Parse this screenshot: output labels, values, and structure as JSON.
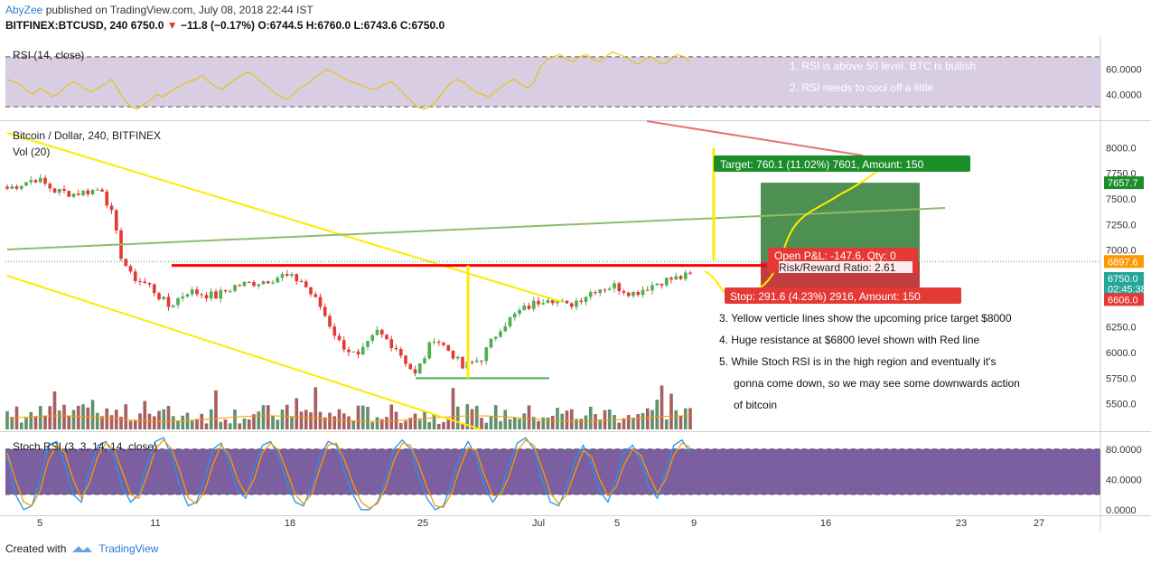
{
  "header": {
    "author": "AbyZee",
    "published_text": "published on TradingView.com, July 08, 2018 22:44 IST",
    "symbol_line_prefix": "BITFINEX:BTCUSD, 240",
    "price": "6750.0",
    "change": "−11.8 (−0.17%)",
    "ohlc": "O:6744.5 H:6760.0 L:6743.6 C:6750.0"
  },
  "footer": {
    "created_with": "Created with",
    "brand": "TradingView"
  },
  "colors": {
    "rsi_band": "#d9cde4",
    "stoch_band": "#7c5fa0",
    "yellow": "#ffea00",
    "red_line": "#ff0000",
    "green_line": "#8fbc6a",
    "target_zone": "#2e7d32",
    "stop_zone": "#b71c1c",
    "up_candle": "#4caf50",
    "down_candle": "#e53935",
    "k_line": "#2196f3",
    "d_line": "#ff9800"
  },
  "chart_data": [
    {
      "type": "line",
      "panel": "rsi",
      "title": "RSI (14, close)",
      "ylim": [
        20,
        80
      ],
      "y_ticks": [
        "60.0000",
        "40.0000"
      ],
      "band": [
        30,
        70
      ],
      "notes": [
        "1. RSI is above 50 level. BTC is bullish",
        "2. RSI needs to cool off a little"
      ],
      "series": [
        {
          "values": [
            52,
            50,
            48,
            43,
            40,
            45,
            42,
            38,
            41,
            46,
            50,
            48,
            44,
            42,
            45,
            48,
            52,
            44,
            36,
            30,
            28,
            32,
            35,
            40,
            38,
            42,
            45,
            48,
            50,
            52,
            55,
            50,
            46,
            44,
            48,
            52,
            55,
            58,
            55,
            50,
            46,
            42,
            38,
            36,
            40,
            45,
            48,
            52,
            56,
            60,
            58,
            55,
            52,
            50,
            48,
            46,
            44,
            45,
            48,
            50,
            46,
            40,
            35,
            30,
            28,
            30,
            35,
            42,
            48,
            52,
            50,
            46,
            42,
            40,
            38,
            42,
            46,
            50,
            52,
            48,
            45,
            50,
            62,
            68,
            70,
            72,
            68,
            66,
            70,
            72,
            68,
            66,
            70,
            74,
            72,
            70,
            66,
            64,
            68,
            70,
            66,
            64,
            68,
            72,
            70,
            66
          ]
        }
      ]
    },
    {
      "type": "candlestick",
      "panel": "price",
      "title": "Bitcoin / Dollar, 240, BITFINEX",
      "volume_label": "Vol (20)",
      "ylim": [
        5250,
        8250
      ],
      "y_ticks": [
        "8000.0",
        "7750.0",
        "7500.0",
        "7250.0",
        "7000.0",
        "6750.0",
        "6500.0",
        "6250.0",
        "6000.0",
        "5750.0",
        "5500.0"
      ],
      "price_badges": [
        "7657.7",
        "6897.6",
        "6750.0",
        "02:45:38",
        "6606.0"
      ],
      "key_points": [
        [
          0,
          7600
        ],
        [
          6,
          7700
        ],
        [
          10,
          7580
        ],
        [
          14,
          7550
        ],
        [
          20,
          7600
        ],
        [
          22,
          7350
        ],
        [
          24,
          6950
        ],
        [
          26,
          6750
        ],
        [
          30,
          6650
        ],
        [
          34,
          6450
        ],
        [
          38,
          6600
        ],
        [
          44,
          6550
        ],
        [
          48,
          6650
        ],
        [
          54,
          6700
        ],
        [
          58,
          6750
        ],
        [
          62,
          6700
        ],
        [
          66,
          6450
        ],
        [
          70,
          6100
        ],
        [
          74,
          5950
        ],
        [
          78,
          6200
        ],
        [
          82,
          6050
        ],
        [
          86,
          5780
        ],
        [
          90,
          6150
        ],
        [
          94,
          5980
        ],
        [
          96,
          5850
        ],
        [
          100,
          5950
        ],
        [
          104,
          6250
        ],
        [
          108,
          6400
        ],
        [
          114,
          6550
        ],
        [
          118,
          6450
        ],
        [
          124,
          6620
        ],
        [
          128,
          6650
        ],
        [
          132,
          6580
        ],
        [
          138,
          6700
        ],
        [
          144,
          6750
        ]
      ],
      "annotations": {
        "target_label": "Target: 760.1 (11.02%) 7601, Amount: 150",
        "open_pl": "Open P&L: -147.6, Qty: 0",
        "risk_reward": "Risk/Reward Ratio: 2.61",
        "stop_label": "Stop: 291.6 (4.23%) 2916, Amount: 150",
        "notes": [
          "3. Yellow verticle lines show the upcoming price target $8000",
          "4. Huge resistance at $6800 level shown with Red line",
          "5. While Stoch RSI is in the high region and eventually it's",
          "gonna come down, so we may see some downwards action",
          "of bitcoin"
        ]
      },
      "levels": {
        "resistance": 6850,
        "target": 7657.7,
        "stop": 6606.0,
        "entry": 6897.6,
        "support": 5750
      }
    },
    {
      "type": "line",
      "panel": "stoch_rsi",
      "title": "Stoch RSI (3, 3, 14, 14, close)",
      "ylim": [
        -5,
        100
      ],
      "y_ticks": [
        "80.0000",
        "40.0000",
        "0.0000"
      ],
      "band": [
        20,
        80
      ],
      "series": [
        {
          "name": "K",
          "values": [
            70,
            20,
            0,
            5,
            40,
            85,
            90,
            60,
            20,
            10,
            50,
            85,
            90,
            70,
            30,
            10,
            20,
            60,
            90,
            95,
            70,
            30,
            5,
            10,
            40,
            80,
            88,
            60,
            25,
            15,
            55,
            85,
            90,
            70,
            35,
            10,
            5,
            30,
            70,
            90,
            85,
            50,
            20,
            0,
            0,
            10,
            40,
            80,
            92,
            80,
            45,
            15,
            0,
            5,
            35,
            70,
            90,
            70,
            30,
            10,
            25,
            60,
            88,
            95,
            80,
            40,
            10,
            5,
            30,
            65,
            85,
            60,
            25,
            10,
            40,
            75,
            85,
            65,
            30,
            15,
            50,
            85,
            92,
            75
          ]
        },
        {
          "name": "D",
          "values": [
            75,
            40,
            10,
            5,
            25,
            65,
            85,
            75,
            40,
            15,
            35,
            70,
            88,
            80,
            50,
            20,
            15,
            45,
            80,
            92,
            80,
            50,
            15,
            8,
            25,
            60,
            85,
            72,
            40,
            20,
            40,
            75,
            88,
            78,
            50,
            20,
            8,
            20,
            55,
            85,
            88,
            65,
            35,
            10,
            2,
            8,
            30,
            65,
            88,
            85,
            60,
            30,
            5,
            3,
            22,
            55,
            82,
            78,
            45,
            18,
            20,
            45,
            78,
            92,
            85,
            55,
            22,
            8,
            20,
            50,
            78,
            70,
            40,
            18,
            30,
            60,
            80,
            72,
            45,
            22,
            40,
            72,
            88,
            82
          ]
        }
      ]
    }
  ],
  "x_axis": {
    "ticks": [
      "5",
      "11",
      "18",
      "25",
      "Jul",
      "5",
      "9",
      "16",
      "23",
      "27"
    ]
  }
}
